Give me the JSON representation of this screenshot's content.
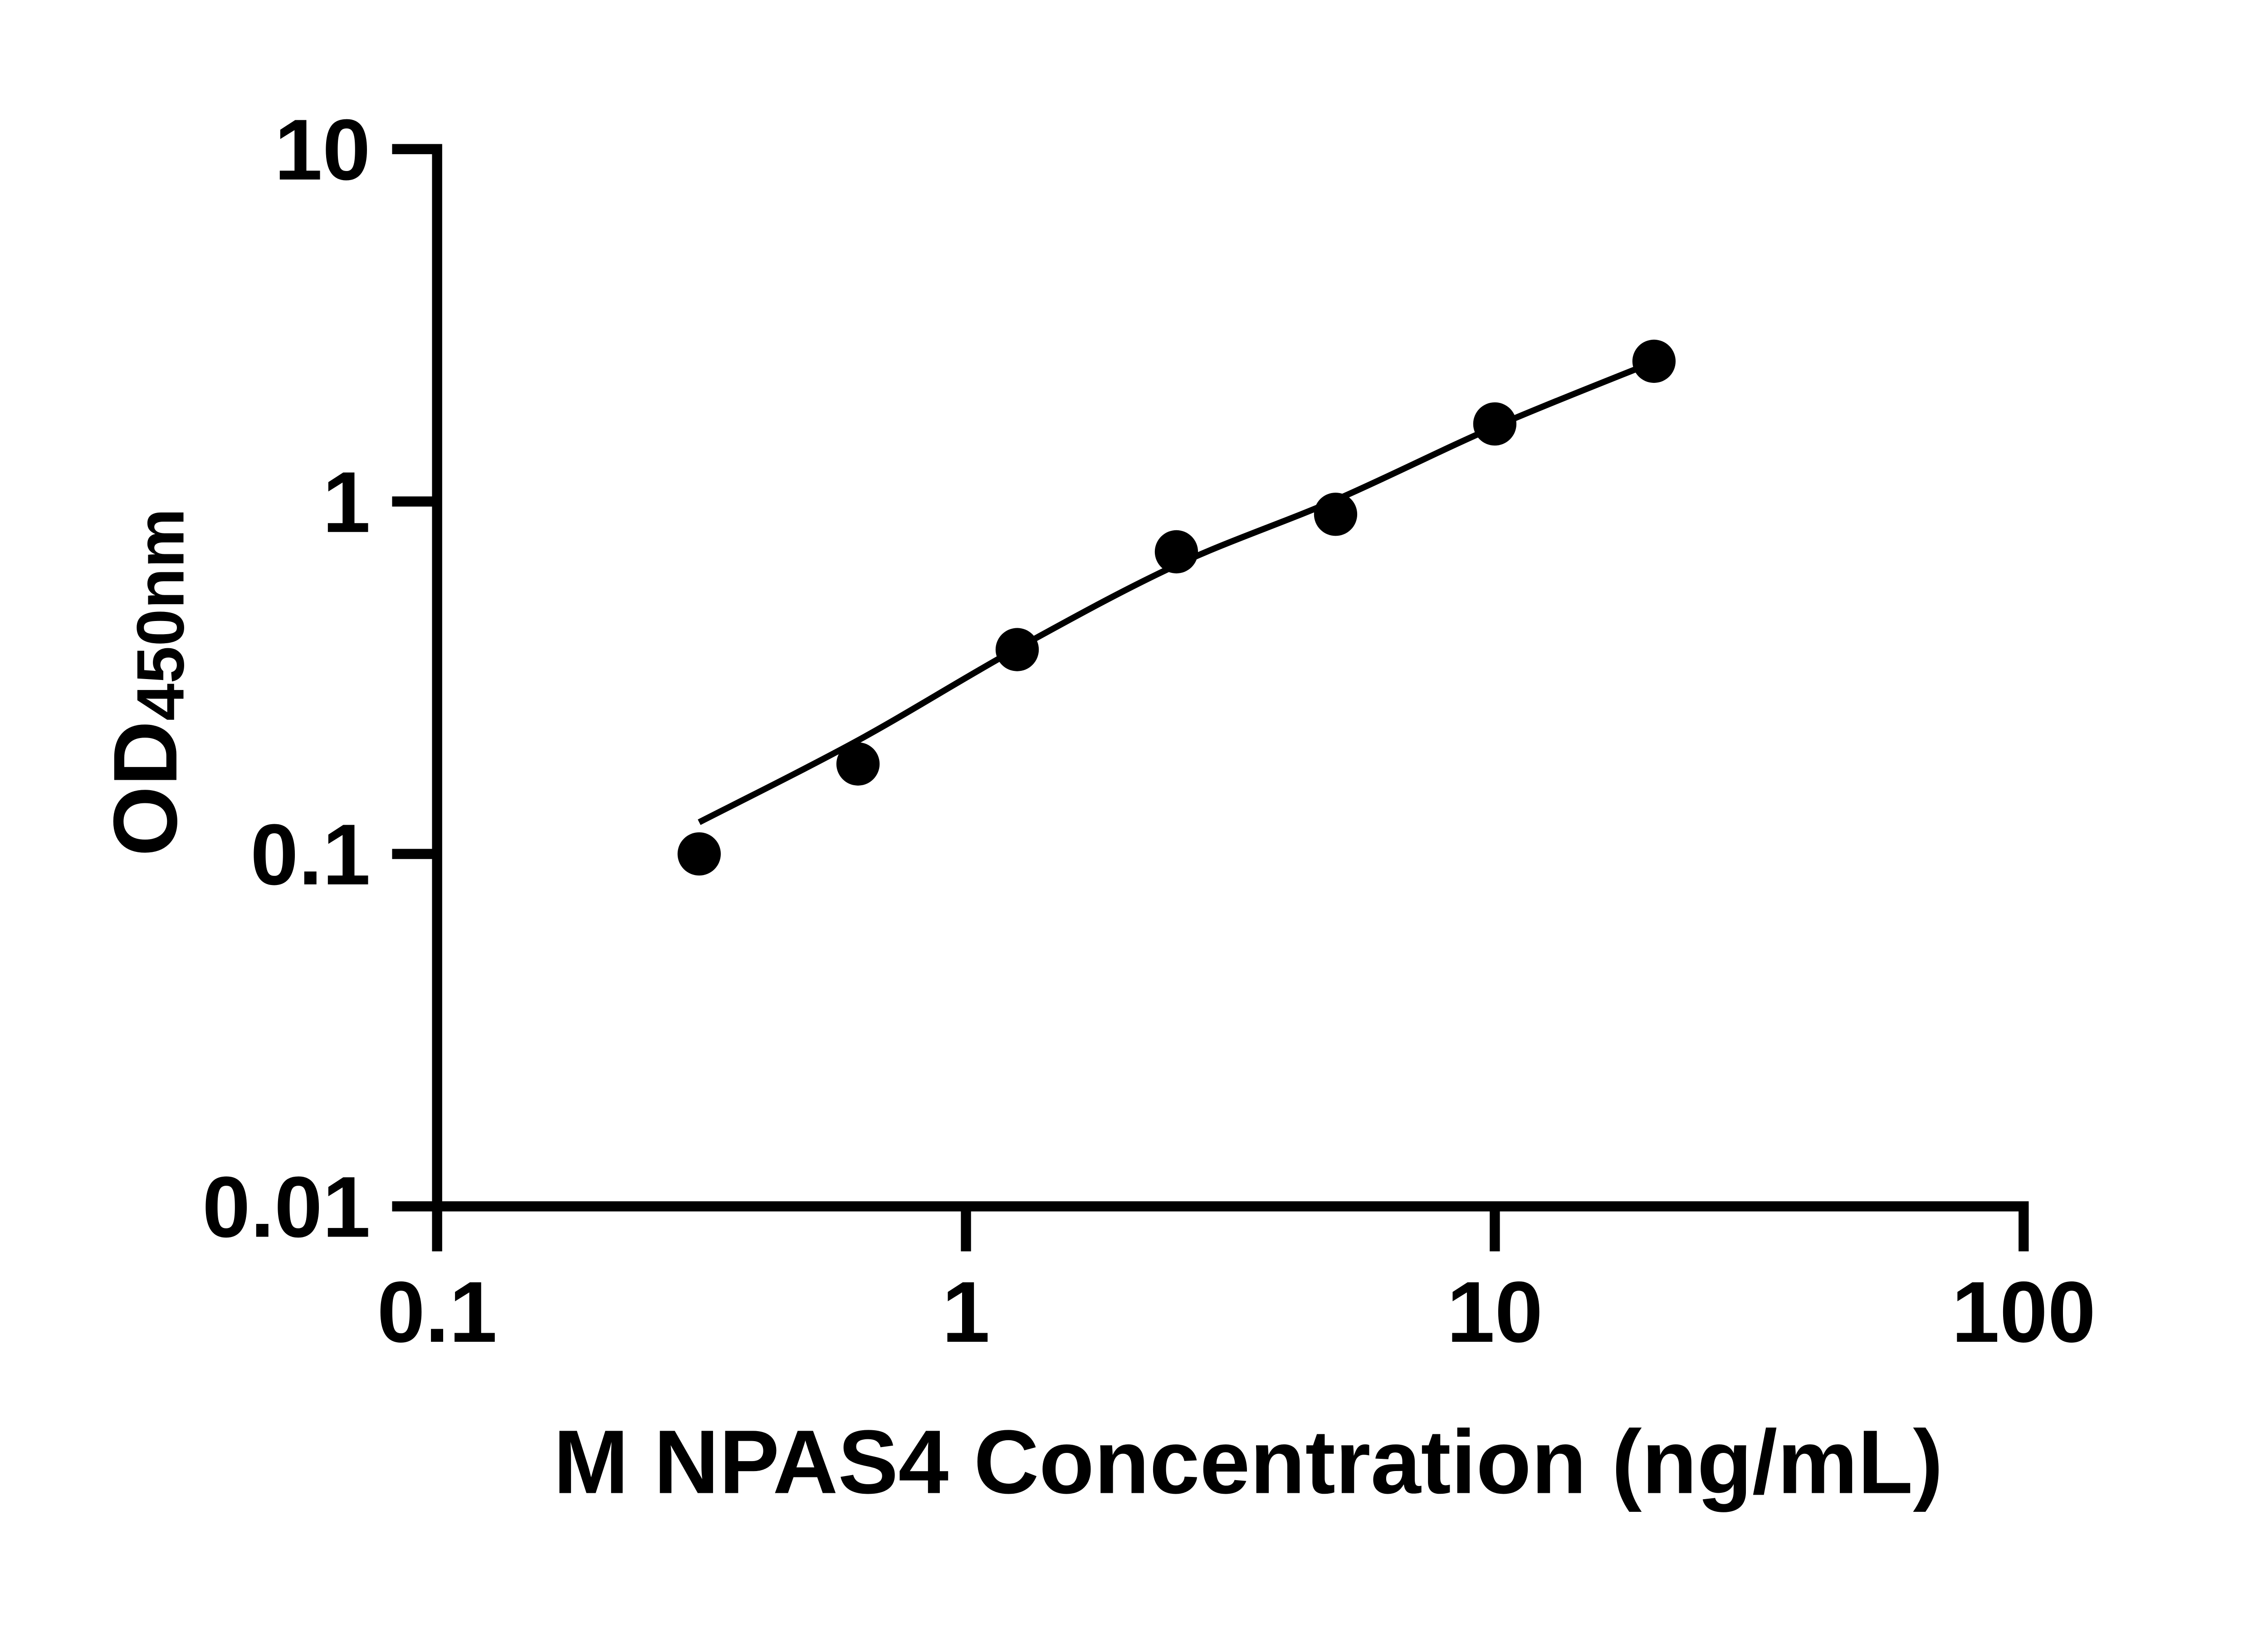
{
  "figure": {
    "background_color": "#ffffff",
    "ink_color": "#000000"
  },
  "chart_data": {
    "type": "scatter",
    "title": "",
    "xlabel": "M NPAS4 Concentration (ng/mL)",
    "ylabel": "OD",
    "ylabel_subscript": "450nm",
    "x_scale": "log10",
    "y_scale": "log10",
    "xlim": [
      0.1,
      100
    ],
    "ylim": [
      0.01,
      10
    ],
    "grid": false,
    "legend": null,
    "x_ticks": [
      {
        "value": 0.1,
        "label": "0.1"
      },
      {
        "value": 1,
        "label": "1"
      },
      {
        "value": 10,
        "label": "10"
      },
      {
        "value": 100,
        "label": "100"
      }
    ],
    "y_ticks": [
      {
        "value": 10,
        "label": "10"
      },
      {
        "value": 1,
        "label": "1"
      },
      {
        "value": 0.1,
        "label": "0.1"
      },
      {
        "value": 0.01,
        "label": "0.01"
      }
    ],
    "series": [
      {
        "name": "standard-samples",
        "marker": "filled-circle",
        "color": "#000000",
        "points": [
          {
            "x": 0.313,
            "y": 0.1
          },
          {
            "x": 0.625,
            "y": 0.18
          },
          {
            "x": 1.25,
            "y": 0.38
          },
          {
            "x": 2.5,
            "y": 0.72
          },
          {
            "x": 5,
            "y": 0.92
          },
          {
            "x": 10,
            "y": 1.66
          },
          {
            "x": 20,
            "y": 2.5
          }
        ]
      }
    ],
    "fit_curve": {
      "name": "standard-curve-fit",
      "color": "#000000",
      "anchors": [
        {
          "x": 0.313,
          "y": 0.123
        },
        {
          "x": 0.625,
          "y": 0.21
        },
        {
          "x": 1.25,
          "y": 0.383
        },
        {
          "x": 2.5,
          "y": 0.66
        },
        {
          "x": 5,
          "y": 1.01
        },
        {
          "x": 10,
          "y": 1.63
        },
        {
          "x": 20,
          "y": 2.49
        }
      ]
    }
  }
}
